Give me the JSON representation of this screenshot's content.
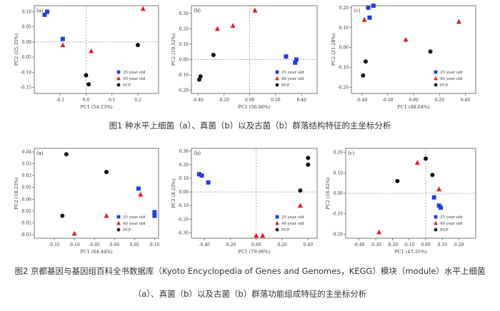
{
  "figure1": {
    "caption": "图1 种水平上细菌（a）、真菌（b）以及古菌（b）群落结构特征的主坐标分析"
  },
  "figure2": {
    "caption_line1": "图2 京都基因与基因组百科全书数据库（Kyoto Encyclopedia of Genes and Genomes，KEGG）模块（module）水平上细菌",
    "caption_line2": "（a）、真菌（b）以及古菌（b）群落功能组成特征的主坐标分析"
  },
  "legend_labels": [
    "25 year old",
    "40 year old",
    "PCF"
  ],
  "colors": {
    "young": "#1f3fe0",
    "old": "#e0201c",
    "pcf": "#111111",
    "axis": "#333333"
  },
  "chart_data": [
    {
      "type": "scatter",
      "panel_label": "(a)",
      "xlabel": "PC1 (54.23%)",
      "ylabel": "PC2 (25.35%)",
      "xlim": [
        -0.2,
        0.28
      ],
      "ylim": [
        -0.17,
        0.12
      ],
      "xticks": [
        {
          "v": -0.1,
          "t": "-0.1"
        },
        {
          "v": 0,
          "t": "0.0"
        },
        {
          "v": 0.1,
          "t": "0.1"
        },
        {
          "v": 0.2,
          "t": "0.2"
        }
      ],
      "yticks": [
        {
          "v": 0.1,
          "t": "0.10"
        },
        {
          "v": 0.05,
          "t": "0.05"
        },
        {
          "v": 0,
          "t": "0.00"
        },
        {
          "v": -0.05,
          "t": "-0.05"
        },
        {
          "v": -0.1,
          "t": "-0.10"
        },
        {
          "v": -0.15,
          "t": "-0.15"
        }
      ],
      "zero_lines": true,
      "series": [
        {
          "name": "25 year old",
          "marker": "square",
          "points": [
            [
              -0.15,
              0.1
            ],
            [
              -0.16,
              0.09
            ],
            [
              -0.09,
              0.01
            ]
          ]
        },
        {
          "name": "40 year old",
          "marker": "triangle",
          "points": [
            [
              -0.09,
              -0.01
            ],
            [
              0.02,
              -0.03
            ],
            [
              0.22,
              0.11
            ]
          ]
        },
        {
          "name": "PCF",
          "marker": "circle",
          "points": [
            [
              0.2,
              -0.01
            ],
            [
              0.0,
              -0.11
            ],
            [
              0.01,
              -0.14
            ]
          ]
        }
      ]
    },
    {
      "type": "scatter",
      "panel_label": "(b)",
      "xlabel": "PC1 (56.06%)",
      "ylabel": "PC2 (19.52%)",
      "xlim": [
        -0.45,
        0.52
      ],
      "ylim": [
        -0.22,
        0.35
      ],
      "xticks": [
        {
          "v": -0.4,
          "t": "-0.40"
        },
        {
          "v": -0.2,
          "t": "-0.20"
        },
        {
          "v": 0,
          "t": "0.00"
        },
        {
          "v": 0.2,
          "t": "0.20"
        },
        {
          "v": 0.4,
          "t": "0.40"
        }
      ],
      "yticks": [
        {
          "v": 0.3,
          "t": "0.30"
        },
        {
          "v": 0.2,
          "t": "0.20"
        },
        {
          "v": 0.1,
          "t": "0.10"
        },
        {
          "v": 0,
          "t": "0.00"
        },
        {
          "v": -0.1,
          "t": "-0.10"
        },
        {
          "v": -0.2,
          "t": "-0.20"
        }
      ],
      "zero_lines": true,
      "series": [
        {
          "name": "25 year old",
          "marker": "square",
          "points": [
            [
              0.28,
              0.02
            ],
            [
              0.36,
              0.0
            ],
            [
              0.35,
              -0.02
            ]
          ]
        },
        {
          "name": "40 year old",
          "marker": "triangle",
          "points": [
            [
              -0.25,
              0.2
            ],
            [
              -0.13,
              0.22
            ],
            [
              0.04,
              0.32
            ]
          ]
        },
        {
          "name": "PCF",
          "marker": "circle",
          "points": [
            [
              -0.28,
              0.03
            ],
            [
              -0.38,
              -0.11
            ],
            [
              -0.39,
              -0.13
            ]
          ]
        }
      ]
    },
    {
      "type": "scatter",
      "panel_label": "(c)",
      "xlabel": "PC1 (48.04%)",
      "ylabel": "PC2 (21.28%)",
      "xlim": [
        -0.48,
        0.48
      ],
      "ylim": [
        -0.23,
        0.21
      ],
      "xticks": [
        {
          "v": -0.4,
          "t": "-0.40"
        },
        {
          "v": -0.2,
          "t": "-0.20"
        },
        {
          "v": 0,
          "t": "0.00"
        },
        {
          "v": 0.2,
          "t": "0.20"
        },
        {
          "v": 0.4,
          "t": "0.40"
        }
      ],
      "yticks": [
        {
          "v": 0.2,
          "t": "0.20"
        },
        {
          "v": 0.1,
          "t": "0.10"
        },
        {
          "v": 0,
          "t": "0.00"
        },
        {
          "v": -0.1,
          "t": "-0.10"
        },
        {
          "v": -0.2,
          "t": "-0.20"
        }
      ],
      "zero_lines": false,
      "series": [
        {
          "name": "25 year old",
          "marker": "square",
          "points": [
            [
              -0.35,
              0.2
            ],
            [
              -0.31,
              0.21
            ],
            [
              -0.34,
              0.15
            ]
          ]
        },
        {
          "name": "40 year old",
          "marker": "triangle",
          "points": [
            [
              -0.38,
              0.14
            ],
            [
              -0.06,
              0.04
            ],
            [
              0.35,
              0.13
            ]
          ]
        },
        {
          "name": "PCF",
          "marker": "circle",
          "points": [
            [
              -0.37,
              -0.07
            ],
            [
              -0.39,
              -0.14
            ],
            [
              0.13,
              -0.02
            ]
          ]
        }
      ]
    },
    {
      "type": "scatter",
      "panel_label": "(a)",
      "xlabel": "PC1 (64.44%)",
      "ylabel": "PC2 (18.23%)",
      "xlim": [
        -0.2,
        0.11
      ],
      "ylim": [
        -0.033,
        0.043
      ],
      "xticks": [
        {
          "v": -0.15,
          "t": "-0.15"
        },
        {
          "v": -0.1,
          "t": "-0.10"
        },
        {
          "v": -0.05,
          "t": "-0.05"
        },
        {
          "v": 0,
          "t": "0.00"
        },
        {
          "v": 0.05,
          "t": "0.05"
        },
        {
          "v": 0.1,
          "t": "0.10"
        }
      ],
      "yticks": [
        {
          "v": 0.04,
          "t": "0.04"
        },
        {
          "v": 0.03,
          "t": "0.03"
        },
        {
          "v": 0.02,
          "t": "0.02"
        },
        {
          "v": 0.01,
          "t": "0.01"
        },
        {
          "v": 0,
          "t": "0.00"
        },
        {
          "v": -0.01,
          "t": "-0.01"
        },
        {
          "v": -0.02,
          "t": "-0.02"
        },
        {
          "v": -0.03,
          "t": "-0.03"
        }
      ],
      "zero_lines": false,
      "series": [
        {
          "name": "25 year old",
          "marker": "square",
          "points": [
            [
              0.06,
              0.009
            ],
            [
              0.1,
              -0.011
            ],
            [
              0.1,
              -0.014
            ]
          ]
        },
        {
          "name": "40 year old",
          "marker": "triangle",
          "points": [
            [
              -0.1,
              -0.029
            ],
            [
              -0.02,
              -0.014
            ],
            [
              0.065,
              0.004
            ]
          ]
        },
        {
          "name": "PCF",
          "marker": "circle",
          "points": [
            [
              -0.12,
              0.038
            ],
            [
              -0.13,
              -0.014
            ],
            [
              -0.02,
              0.023
            ]
          ]
        }
      ]
    },
    {
      "type": "scatter",
      "panel_label": "(b)",
      "xlabel": "PC1 (79.06%)",
      "ylabel": "PC2 (8.22%)",
      "xlim": [
        -0.5,
        0.47
      ],
      "ylim": [
        -0.34,
        0.32
      ],
      "xticks": [
        {
          "v": -0.4,
          "t": "-0.40"
        },
        {
          "v": -0.2,
          "t": "-0.20"
        },
        {
          "v": 0,
          "t": "0.00"
        },
        {
          "v": 0.2,
          "t": "0.20"
        },
        {
          "v": 0.4,
          "t": "0.40"
        }
      ],
      "yticks": [
        {
          "v": 0.3,
          "t": "0.30"
        },
        {
          "v": 0.2,
          "t": "0.20"
        },
        {
          "v": 0.1,
          "t": "0.10"
        },
        {
          "v": 0,
          "t": "0.00"
        },
        {
          "v": -0.1,
          "t": "-0.10"
        },
        {
          "v": -0.2,
          "t": "-0.20"
        },
        {
          "v": -0.3,
          "t": "-0.30"
        }
      ],
      "zero_lines": true,
      "series": [
        {
          "name": "25 year old",
          "marker": "square",
          "points": [
            [
              -0.44,
              0.13
            ],
            [
              -0.42,
              0.12
            ],
            [
              -0.37,
              0.07
            ]
          ]
        },
        {
          "name": "40 year old",
          "marker": "triangle",
          "points": [
            [
              0.0,
              -0.32
            ],
            [
              0.05,
              -0.32
            ],
            [
              0.34,
              -0.1
            ]
          ]
        },
        {
          "name": "PCF",
          "marker": "circle",
          "points": [
            [
              0.4,
              0.25
            ],
            [
              0.4,
              0.2
            ],
            [
              0.34,
              0.01
            ]
          ]
        }
      ]
    },
    {
      "type": "scatter",
      "panel_label": "(c)",
      "xlabel": "PC1 (47.35%)",
      "ylabel": "PC2 (16.82%)",
      "xlim": [
        -0.48,
        0.3
      ],
      "ylim": [
        -0.22,
        0.22
      ],
      "xticks": [
        {
          "v": -0.4,
          "t": "-0.40"
        },
        {
          "v": -0.3,
          "t": "-0.30"
        },
        {
          "v": -0.2,
          "t": "-0.20"
        },
        {
          "v": -0.1,
          "t": "-0.10"
        },
        {
          "v": 0,
          "t": "0.00"
        },
        {
          "v": 0.1,
          "t": "0.10"
        },
        {
          "v": 0.2,
          "t": "0.20"
        }
      ],
      "yticks": [
        {
          "v": 0.2,
          "t": "0.20"
        },
        {
          "v": 0.1,
          "t": "0.10"
        },
        {
          "v": 0,
          "t": "0.00"
        },
        {
          "v": -0.1,
          "t": "-0.10"
        },
        {
          "v": -0.2,
          "t": "-0.20"
        }
      ],
      "zero_lines": true,
      "series": [
        {
          "name": "25 year old",
          "marker": "square",
          "points": [
            [
              0.05,
              -0.02
            ],
            [
              0.08,
              -0.06
            ],
            [
              0.09,
              -0.07
            ]
          ]
        },
        {
          "name": "40 year old",
          "marker": "triangle",
          "points": [
            [
              -0.05,
              0.15
            ],
            [
              0.08,
              0.02
            ],
            [
              -0.28,
              -0.19
            ]
          ]
        },
        {
          "name": "PCF",
          "marker": "circle",
          "points": [
            [
              0.0,
              0.17
            ],
            [
              0.04,
              0.09
            ],
            [
              -0.17,
              0.06
            ]
          ]
        }
      ]
    }
  ]
}
